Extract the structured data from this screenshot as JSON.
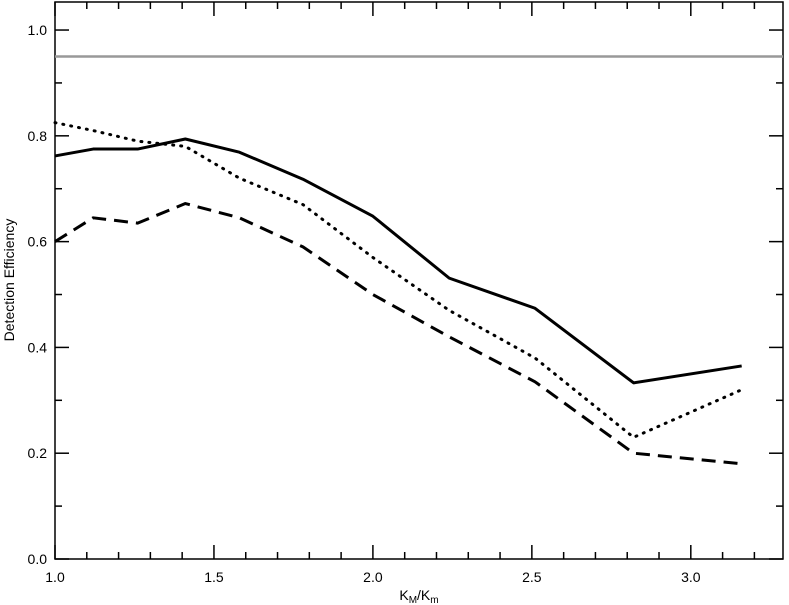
{
  "chart_data": {
    "type": "line",
    "x_label": [
      "K",
      "M",
      "/K",
      "m"
    ],
    "y_label": "Detection Efficiency",
    "x": [
      1.0,
      1.12,
      1.26,
      1.41,
      1.58,
      1.78,
      2.0,
      2.24,
      2.51,
      2.82,
      3.16
    ],
    "series": [
      {
        "color": "#000000",
        "style": "solid",
        "values": [
          0.762,
          0.775,
          0.775,
          0.794,
          0.769,
          0.718,
          0.648,
          0.531,
          0.474,
          0.333,
          0.365
        ]
      },
      {
        "color": "#000000",
        "style": "dotted",
        "values": [
          0.825,
          0.81,
          0.79,
          0.78,
          0.72,
          0.67,
          0.57,
          0.47,
          0.38,
          0.23,
          0.32
        ]
      },
      {
        "color": "#000000",
        "style": "dashed",
        "values": [
          0.6,
          0.645,
          0.635,
          0.672,
          0.645,
          0.59,
          0.5,
          0.42,
          0.335,
          0.2,
          0.18
        ]
      }
    ],
    "hline": {
      "value": 0.95,
      "color": "#999999"
    },
    "xlim": [
      1.0,
      3.29
    ],
    "ylim": [
      0,
      1.053
    ],
    "xticks": [
      {
        "value": 1,
        "label": "1.0"
      },
      1.5,
      {
        "value": 2,
        "label": "2.0"
      },
      2.5,
      {
        "value": 3,
        "label": "3.0"
      }
    ],
    "yticks": [
      {
        "value": 0,
        "label": "0.0"
      },
      0.2,
      0.4,
      0.6,
      0.8,
      {
        "value": 1,
        "label": "1.0"
      }
    ],
    "xminor_ticks": [
      1.1,
      1.2,
      1.3,
      1.4,
      1.6,
      1.7,
      1.8,
      1.9,
      2.1,
      2.2,
      2.3,
      2.4,
      2.6,
      2.7,
      2.8,
      2.9,
      3.1,
      3.2
    ],
    "yminor_ticks": [
      0.1,
      0.3,
      0.5,
      0.7,
      0.9
    ]
  }
}
